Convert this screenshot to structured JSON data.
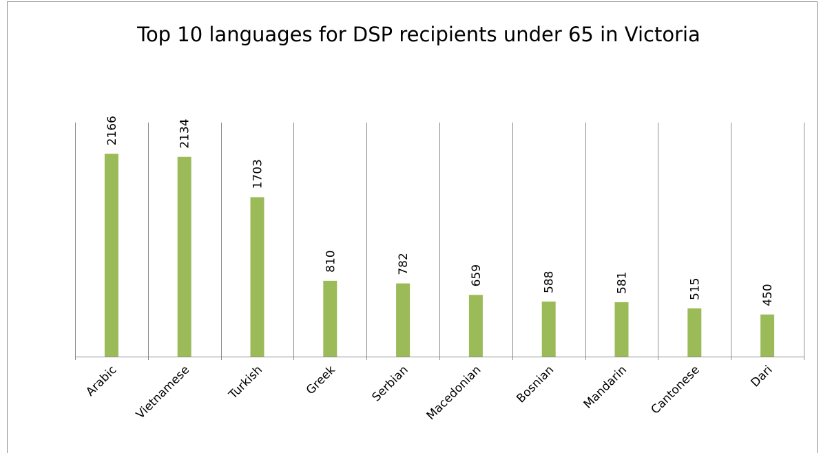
{
  "chart_data": {
    "type": "bar",
    "title": "Top 10 languages for DSP recipients under 65 in Victoria",
    "categories": [
      "Arabic",
      "Vietnamese",
      "Turkish",
      "Greek",
      "Serbian",
      "Macedonian",
      "Bosnian",
      "Mandarin",
      "Cantonese",
      "Dari"
    ],
    "values": [
      2166,
      2134,
      1703,
      810,
      782,
      659,
      588,
      581,
      515,
      450
    ],
    "color": "#9bbb59",
    "ylim": [
      0,
      2500
    ],
    "grid": true
  }
}
